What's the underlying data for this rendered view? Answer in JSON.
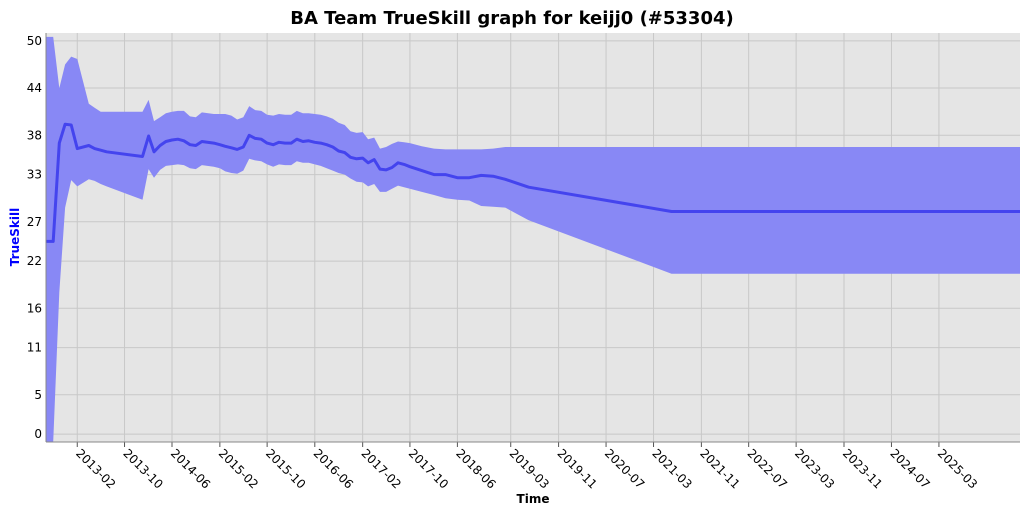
{
  "chart_data": {
    "type": "line",
    "title": "BA Team TrueSkill graph for keijj0 (#53304)",
    "xlabel": "Time",
    "ylabel": "TrueSkill",
    "ylim": [
      -1,
      51
    ],
    "xlim": [
      "2012-08-25",
      "2026-04-20"
    ],
    "y_ticks": [
      0,
      5,
      11,
      16,
      22,
      27,
      33,
      38,
      44,
      50
    ],
    "x_ticks": [
      "2013-02",
      "2013-10",
      "2014-06",
      "2015-02",
      "2015-10",
      "2016-06",
      "2017-02",
      "2017-10",
      "2018-06",
      "2019-03",
      "2019-11",
      "2020-07",
      "2021-03",
      "2021-11",
      "2022-07",
      "2023-03",
      "2023-11",
      "2024-07",
      "2025-03"
    ],
    "grid": true,
    "colors": {
      "line": "#4444ee",
      "band": "#8888f5",
      "plot_background": "#e5e5e5",
      "ylabel": "#0000ff"
    },
    "series": [
      {
        "x": [
          "2012-08-25",
          "2012-10-01",
          "2012-11-01",
          "2012-12-01",
          "2013-01-01",
          "2013-02-01",
          "2013-04-01",
          "2013-05-01",
          "2013-06-01",
          "2013-07-01",
          "2014-01-01",
          "2014-02-01",
          "2014-03-01",
          "2014-04-01",
          "2014-05-01",
          "2014-06-01",
          "2014-07-01",
          "2014-08-01",
          "2014-09-01",
          "2014-10-01",
          "2014-11-01",
          "2015-01-01",
          "2015-02-01",
          "2015-03-01",
          "2015-04-01",
          "2015-05-01",
          "2015-06-01",
          "2015-07-01",
          "2015-08-01",
          "2015-09-01",
          "2015-10-01",
          "2015-11-01",
          "2015-12-01",
          "2016-01-01",
          "2016-02-01",
          "2016-03-01",
          "2016-04-01",
          "2016-05-01",
          "2016-06-01",
          "2016-07-01",
          "2016-08-01",
          "2016-09-01",
          "2016-10-01",
          "2016-11-01",
          "2016-12-01",
          "2017-01-01",
          "2017-02-01",
          "2017-03-01",
          "2017-04-01",
          "2017-05-01",
          "2017-06-01",
          "2017-07-01",
          "2017-08-01",
          "2017-09-01",
          "2017-10-01",
          "2017-12-01",
          "2018-02-01",
          "2018-04-01",
          "2018-06-01",
          "2018-08-01",
          "2018-10-01",
          "2018-12-01",
          "2019-02-01",
          "2019-04-01",
          "2019-06-01",
          "2021-06-01",
          "2026-04-20"
        ],
        "mean": [
          24.5,
          24.5,
          37,
          39.4,
          39.3,
          36.3,
          36.7,
          36.3,
          36.1,
          35.9,
          35.3,
          37.9,
          35.9,
          36.7,
          37.2,
          37.4,
          37.5,
          37.3,
          36.8,
          36.7,
          37.2,
          37,
          36.8,
          36.6,
          36.4,
          36.2,
          36.5,
          38,
          37.6,
          37.5,
          37.0,
          36.8,
          37.1,
          37.0,
          37.0,
          37.5,
          37.2,
          37.3,
          37.1,
          37.0,
          36.8,
          36.5,
          36.0,
          35.8,
          35.2,
          35.0,
          35.1,
          34.5,
          34.9,
          33.7,
          33.6,
          33.9,
          34.5,
          34.3,
          34.0,
          33.5,
          33.0,
          33.0,
          32.6,
          32.6,
          32.9,
          32.8,
          32.4,
          31.9,
          31.4,
          28.3,
          28.3
        ],
        "upper": [
          50.5,
          50.5,
          44,
          47,
          48,
          47.7,
          42,
          41.5,
          41,
          41,
          41,
          42.5,
          39.8,
          40.3,
          40.8,
          41,
          41.1,
          41.1,
          40.4,
          40.3,
          40.9,
          40.7,
          40.7,
          40.7,
          40.5,
          40.0,
          40.3,
          41.7,
          41.2,
          41.1,
          40.6,
          40.5,
          40.7,
          40.6,
          40.6,
          41.1,
          40.8,
          40.8,
          40.7,
          40.6,
          40.4,
          40.1,
          39.6,
          39.3,
          38.5,
          38.3,
          38.4,
          37.5,
          37.7,
          36.3,
          36.5,
          36.9,
          37.2,
          37.1,
          37.0,
          36.6,
          36.3,
          36.2,
          36.2,
          36.2,
          36.2,
          36.3,
          36.5,
          36.5,
          36.5,
          36.5,
          36.5
        ],
        "lower": [
          -1,
          -1,
          18,
          28.8,
          32.3,
          31.5,
          32.4,
          32.2,
          31.8,
          31.5,
          29.8,
          33.7,
          32.6,
          33.6,
          34.1,
          34.2,
          34.3,
          34.2,
          33.8,
          33.7,
          34.2,
          34.0,
          33.8,
          33.4,
          33.2,
          33.1,
          33.5,
          35.0,
          34.8,
          34.7,
          34.3,
          34.0,
          34.3,
          34.2,
          34.2,
          34.7,
          34.5,
          34.5,
          34.3,
          34.1,
          33.8,
          33.5,
          33.2,
          33.0,
          32.5,
          32.1,
          32.0,
          31.5,
          31.8,
          30.8,
          30.8,
          31.2,
          31.6,
          31.4,
          31.2,
          30.8,
          30.4,
          30.0,
          29.8,
          29.7,
          29.0,
          28.9,
          28.8,
          28.0,
          27.2,
          20.4,
          20.4
        ]
      }
    ]
  }
}
